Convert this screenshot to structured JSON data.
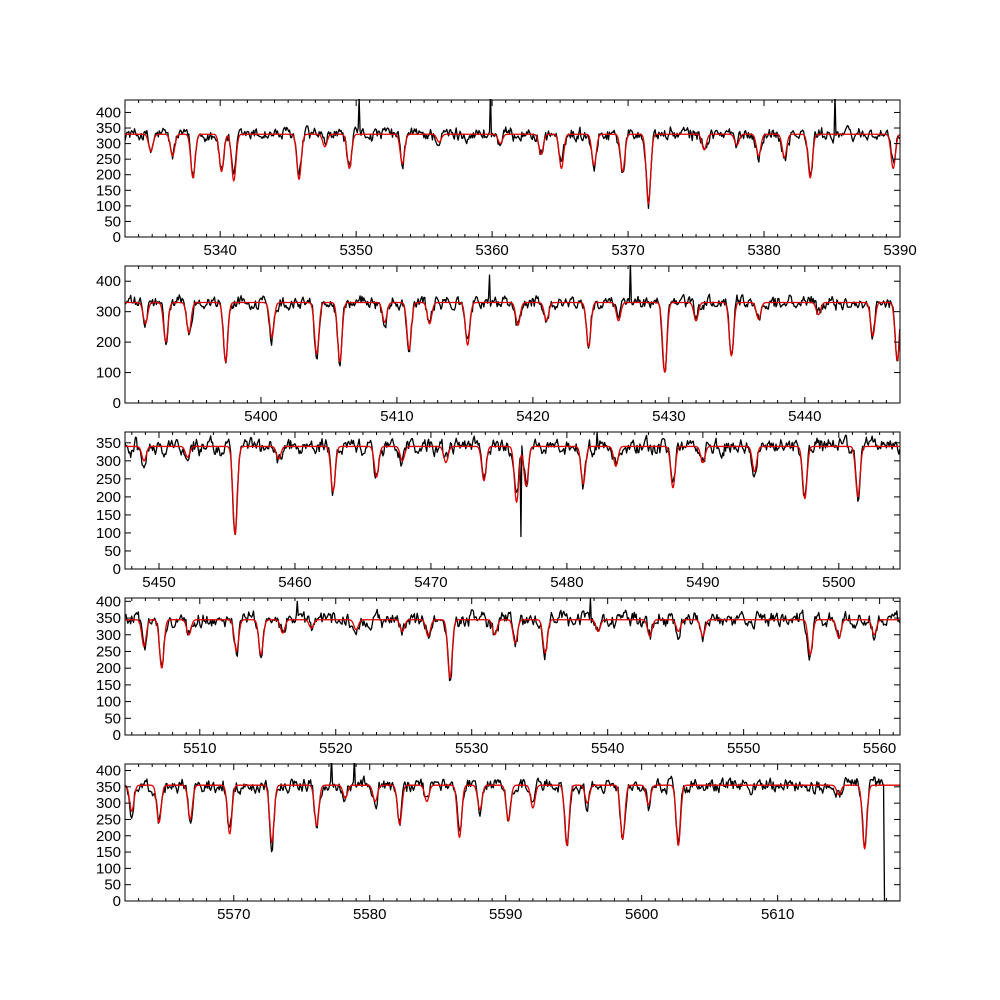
{
  "colors": {
    "observed": "#000000",
    "model": "#e00000",
    "frame": "#000000",
    "background": "#ffffff"
  },
  "chart_data": [
    {
      "type": "line",
      "xlim": [
        5333,
        5390
      ],
      "ylim": [
        0,
        440
      ],
      "xticks": [
        5340,
        5350,
        5360,
        5370,
        5380,
        5390
      ],
      "yticks": [
        0,
        50,
        100,
        150,
        200,
        250,
        300,
        350,
        400
      ],
      "continuum": 330,
      "lines": [
        {
          "x": 5334.9,
          "depth": 55
        },
        {
          "x": 5336.5,
          "depth": 70
        },
        {
          "x": 5338.0,
          "depth": 140
        },
        {
          "x": 5340.1,
          "depth": 120
        },
        {
          "x": 5341.0,
          "depth": 150
        },
        {
          "x": 5345.8,
          "depth": 145
        },
        {
          "x": 5347.7,
          "depth": 40
        },
        {
          "x": 5349.5,
          "depth": 110
        },
        {
          "x": 5353.4,
          "depth": 95
        },
        {
          "x": 5356.1,
          "depth": 25
        },
        {
          "x": 5360.6,
          "depth": 30
        },
        {
          "x": 5363.6,
          "depth": 65
        },
        {
          "x": 5365.1,
          "depth": 110
        },
        {
          "x": 5367.5,
          "depth": 100
        },
        {
          "x": 5369.6,
          "depth": 120
        },
        {
          "x": 5371.5,
          "depth": 225
        },
        {
          "x": 5375.6,
          "depth": 50
        },
        {
          "x": 5378.0,
          "depth": 35
        },
        {
          "x": 5379.6,
          "depth": 70
        },
        {
          "x": 5381.5,
          "depth": 75
        },
        {
          "x": 5383.4,
          "depth": 140
        },
        {
          "x": 5389.5,
          "depth": 110
        }
      ],
      "spikes": [
        {
          "x": 5350.2,
          "y": 445
        },
        {
          "x": 5359.9,
          "y": 470
        },
        {
          "x": 5385.2,
          "y": 455
        }
      ]
    },
    {
      "type": "line",
      "xlim": [
        5390,
        5447
      ],
      "ylim": [
        0,
        450
      ],
      "xticks": [
        5400,
        5410,
        5420,
        5430,
        5440
      ],
      "yticks": [
        0,
        100,
        200,
        300,
        400
      ],
      "continuum": 330,
      "lines": [
        {
          "x": 5391.5,
          "depth": 70
        },
        {
          "x": 5393.0,
          "depth": 130
        },
        {
          "x": 5394.7,
          "depth": 100
        },
        {
          "x": 5397.4,
          "depth": 195
        },
        {
          "x": 5400.8,
          "depth": 115
        },
        {
          "x": 5404.1,
          "depth": 170
        },
        {
          "x": 5405.8,
          "depth": 195
        },
        {
          "x": 5409.1,
          "depth": 65
        },
        {
          "x": 5410.9,
          "depth": 155
        },
        {
          "x": 5412.4,
          "depth": 70
        },
        {
          "x": 5415.2,
          "depth": 140
        },
        {
          "x": 5418.9,
          "depth": 75
        },
        {
          "x": 5421.0,
          "depth": 60
        },
        {
          "x": 5424.1,
          "depth": 145
        },
        {
          "x": 5426.3,
          "depth": 60
        },
        {
          "x": 5429.7,
          "depth": 230
        },
        {
          "x": 5432.0,
          "depth": 60
        },
        {
          "x": 5434.6,
          "depth": 175
        },
        {
          "x": 5436.6,
          "depth": 55
        },
        {
          "x": 5441.0,
          "depth": 40
        },
        {
          "x": 5445.0,
          "depth": 110
        },
        {
          "x": 5446.8,
          "depth": 190
        }
      ],
      "spikes": [
        {
          "x": 5416.8,
          "y": 420
        },
        {
          "x": 5427.2,
          "y": 460
        }
      ]
    },
    {
      "type": "line",
      "xlim": [
        5447.5,
        5504.5
      ],
      "ylim": [
        0,
        380
      ],
      "xticks": [
        5450,
        5460,
        5470,
        5480,
        5490,
        5500
      ],
      "yticks": [
        0,
        50,
        100,
        150,
        200,
        250,
        300,
        350
      ],
      "continuum": 340,
      "lines": [
        {
          "x": 5448.9,
          "depth": 40
        },
        {
          "x": 5452.1,
          "depth": 30
        },
        {
          "x": 5455.6,
          "depth": 245
        },
        {
          "x": 5458.8,
          "depth": 35
        },
        {
          "x": 5462.8,
          "depth": 125
        },
        {
          "x": 5466.0,
          "depth": 85
        },
        {
          "x": 5467.9,
          "depth": 40
        },
        {
          "x": 5471.1,
          "depth": 45
        },
        {
          "x": 5473.9,
          "depth": 95
        },
        {
          "x": 5476.3,
          "depth": 155
        },
        {
          "x": 5477.0,
          "depth": 110
        },
        {
          "x": 5481.2,
          "depth": 105
        },
        {
          "x": 5483.6,
          "depth": 55
        },
        {
          "x": 5487.8,
          "depth": 115
        },
        {
          "x": 5490.0,
          "depth": 45
        },
        {
          "x": 5493.8,
          "depth": 70
        },
        {
          "x": 5497.5,
          "depth": 145
        },
        {
          "x": 5501.4,
          "depth": 140
        }
      ],
      "spikes": [
        {
          "x": 5476.6,
          "y": 90
        },
        {
          "x": 5482.2,
          "y": 380
        }
      ]
    },
    {
      "type": "line",
      "xlim": [
        5504.5,
        5561.5
      ],
      "ylim": [
        0,
        410
      ],
      "xticks": [
        5510,
        5520,
        5530,
        5540,
        5550,
        5560
      ],
      "yticks": [
        0,
        50,
        100,
        150,
        200,
        250,
        300,
        350,
        400
      ],
      "continuum": 345,
      "lines": [
        {
          "x": 5505.9,
          "depth": 80
        },
        {
          "x": 5507.2,
          "depth": 145
        },
        {
          "x": 5509.2,
          "depth": 45
        },
        {
          "x": 5512.7,
          "depth": 95
        },
        {
          "x": 5514.5,
          "depth": 105
        },
        {
          "x": 5516.1,
          "depth": 40
        },
        {
          "x": 5518.2,
          "depth": 25
        },
        {
          "x": 5521.5,
          "depth": 30
        },
        {
          "x": 5524.9,
          "depth": 35
        },
        {
          "x": 5526.8,
          "depth": 50
        },
        {
          "x": 5528.4,
          "depth": 175
        },
        {
          "x": 5531.7,
          "depth": 45
        },
        {
          "x": 5533.2,
          "depth": 70
        },
        {
          "x": 5535.4,
          "depth": 100
        },
        {
          "x": 5539.3,
          "depth": 35
        },
        {
          "x": 5543.1,
          "depth": 50
        },
        {
          "x": 5545.2,
          "depth": 35
        },
        {
          "x": 5547.0,
          "depth": 50
        },
        {
          "x": 5554.9,
          "depth": 105
        },
        {
          "x": 5557.0,
          "depth": 55
        },
        {
          "x": 5559.6,
          "depth": 45
        }
      ],
      "spikes": [
        {
          "x": 5517.2,
          "y": 400
        },
        {
          "x": 5538.7,
          "y": 410
        }
      ]
    },
    {
      "type": "line",
      "xlim": [
        5562,
        5619
      ],
      "ylim": [
        0,
        420
      ],
      "xticks": [
        5570,
        5580,
        5590,
        5600,
        5610
      ],
      "yticks": [
        0,
        50,
        100,
        150,
        200,
        250,
        300,
        350,
        400
      ],
      "continuum": 355,
      "lines": [
        {
          "x": 5562.5,
          "depth": 80
        },
        {
          "x": 5564.5,
          "depth": 115
        },
        {
          "x": 5566.8,
          "depth": 105
        },
        {
          "x": 5569.7,
          "depth": 150
        },
        {
          "x": 5572.8,
          "depth": 175
        },
        {
          "x": 5576.1,
          "depth": 125
        },
        {
          "x": 5578.2,
          "depth": 40
        },
        {
          "x": 5580.4,
          "depth": 50
        },
        {
          "x": 5582.2,
          "depth": 120
        },
        {
          "x": 5584.2,
          "depth": 50
        },
        {
          "x": 5586.6,
          "depth": 160
        },
        {
          "x": 5588.1,
          "depth": 75
        },
        {
          "x": 5590.2,
          "depth": 110
        },
        {
          "x": 5592.0,
          "depth": 70
        },
        {
          "x": 5594.5,
          "depth": 185
        },
        {
          "x": 5596.0,
          "depth": 55
        },
        {
          "x": 5598.6,
          "depth": 165
        },
        {
          "x": 5600.5,
          "depth": 60
        },
        {
          "x": 5602.7,
          "depth": 185
        },
        {
          "x": 5614.5,
          "depth": 30
        },
        {
          "x": 5616.4,
          "depth": 195
        }
      ],
      "spikes": [
        {
          "x": 5577.2,
          "y": 440
        },
        {
          "x": 5578.9,
          "y": 440
        }
      ],
      "cutoff": {
        "x": 5617.8,
        "y": 0
      }
    }
  ]
}
